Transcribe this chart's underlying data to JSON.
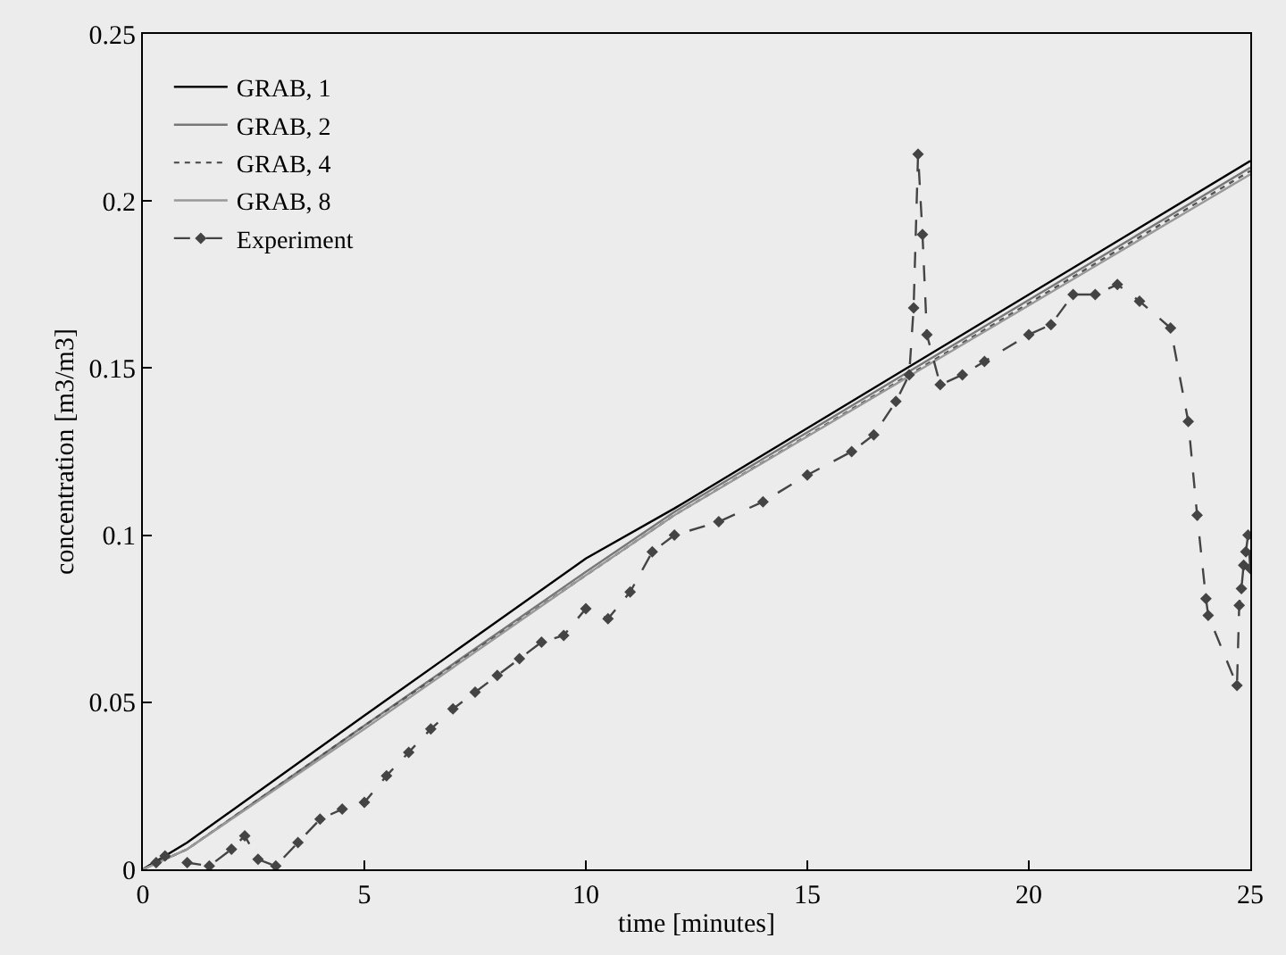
{
  "chart_data": {
    "type": "line",
    "xlabel": "time [minutes]",
    "ylabel": "concentration [m3/m3]",
    "xlim": [
      0,
      25
    ],
    "ylim": [
      0,
      0.25
    ],
    "xticks": [
      0,
      5,
      10,
      15,
      20,
      25
    ],
    "yticks": [
      0,
      0.05,
      0.1,
      0.15,
      0.2,
      0.25
    ],
    "grid": false,
    "legend": "top left",
    "series": [
      {
        "name": "GRAB, 1",
        "color": "#000000",
        "line_style": "solid",
        "marker": "none",
        "x": [
          0,
          1,
          5,
          10,
          12,
          25
        ],
        "values": [
          0,
          0.008,
          0.046,
          0.093,
          0.108,
          0.212
        ]
      },
      {
        "name": "GRAB, 2",
        "color": "#777777",
        "line_style": "solid",
        "marker": "none",
        "x": [
          0,
          1,
          5,
          10,
          12,
          25
        ],
        "values": [
          0,
          0.006,
          0.043,
          0.089,
          0.107,
          0.21
        ]
      },
      {
        "name": "GRAB, 4",
        "color": "#555555",
        "line_style": "dotted",
        "marker": "none",
        "x": [
          0,
          1,
          5,
          10,
          12,
          25
        ],
        "values": [
          0,
          0.006,
          0.043,
          0.088,
          0.106,
          0.209
        ]
      },
      {
        "name": "GRAB, 8",
        "color": "#999999",
        "line_style": "solid",
        "marker": "none",
        "x": [
          0,
          1,
          5,
          10,
          12,
          25
        ],
        "values": [
          0,
          0.006,
          0.042,
          0.088,
          0.106,
          0.208
        ]
      },
      {
        "name": "Experiment",
        "color": "#444444",
        "line_style": "dashed",
        "marker": "diamond",
        "x": [
          0.3,
          0.5,
          1,
          1.5,
          2,
          2.3,
          2.6,
          3,
          3.5,
          4,
          4.5,
          5,
          5.5,
          6,
          6.5,
          7,
          7.5,
          8,
          8.5,
          9,
          9.5,
          10,
          10.5,
          11,
          11.5,
          12,
          13,
          14,
          15,
          16,
          16.5,
          17,
          17.3,
          17.4,
          17.5,
          17.6,
          17.7,
          18,
          18.5,
          19,
          20,
          20.5,
          21,
          21.5,
          22,
          22.5,
          23.2,
          23.6,
          23.8,
          24.0,
          24.05,
          24.7,
          24.75,
          24.8,
          24.85,
          24.9,
          24.95,
          25
        ],
        "values": [
          0.002,
          0.004,
          0.002,
          0.001,
          0.006,
          0.01,
          0.003,
          0.001,
          0.008,
          0.015,
          0.018,
          0.02,
          0.028,
          0.035,
          0.042,
          0.048,
          0.053,
          0.058,
          0.063,
          0.068,
          0.07,
          0.078,
          0.075,
          0.083,
          0.095,
          0.1,
          0.104,
          0.11,
          0.118,
          0.125,
          0.13,
          0.14,
          0.148,
          0.168,
          0.214,
          0.19,
          0.16,
          0.145,
          0.148,
          0.152,
          0.16,
          0.163,
          0.172,
          0.172,
          0.175,
          0.17,
          0.162,
          0.134,
          0.106,
          0.081,
          0.076,
          0.055,
          0.079,
          0.084,
          0.091,
          0.095,
          0.1,
          0.09
        ]
      }
    ]
  }
}
